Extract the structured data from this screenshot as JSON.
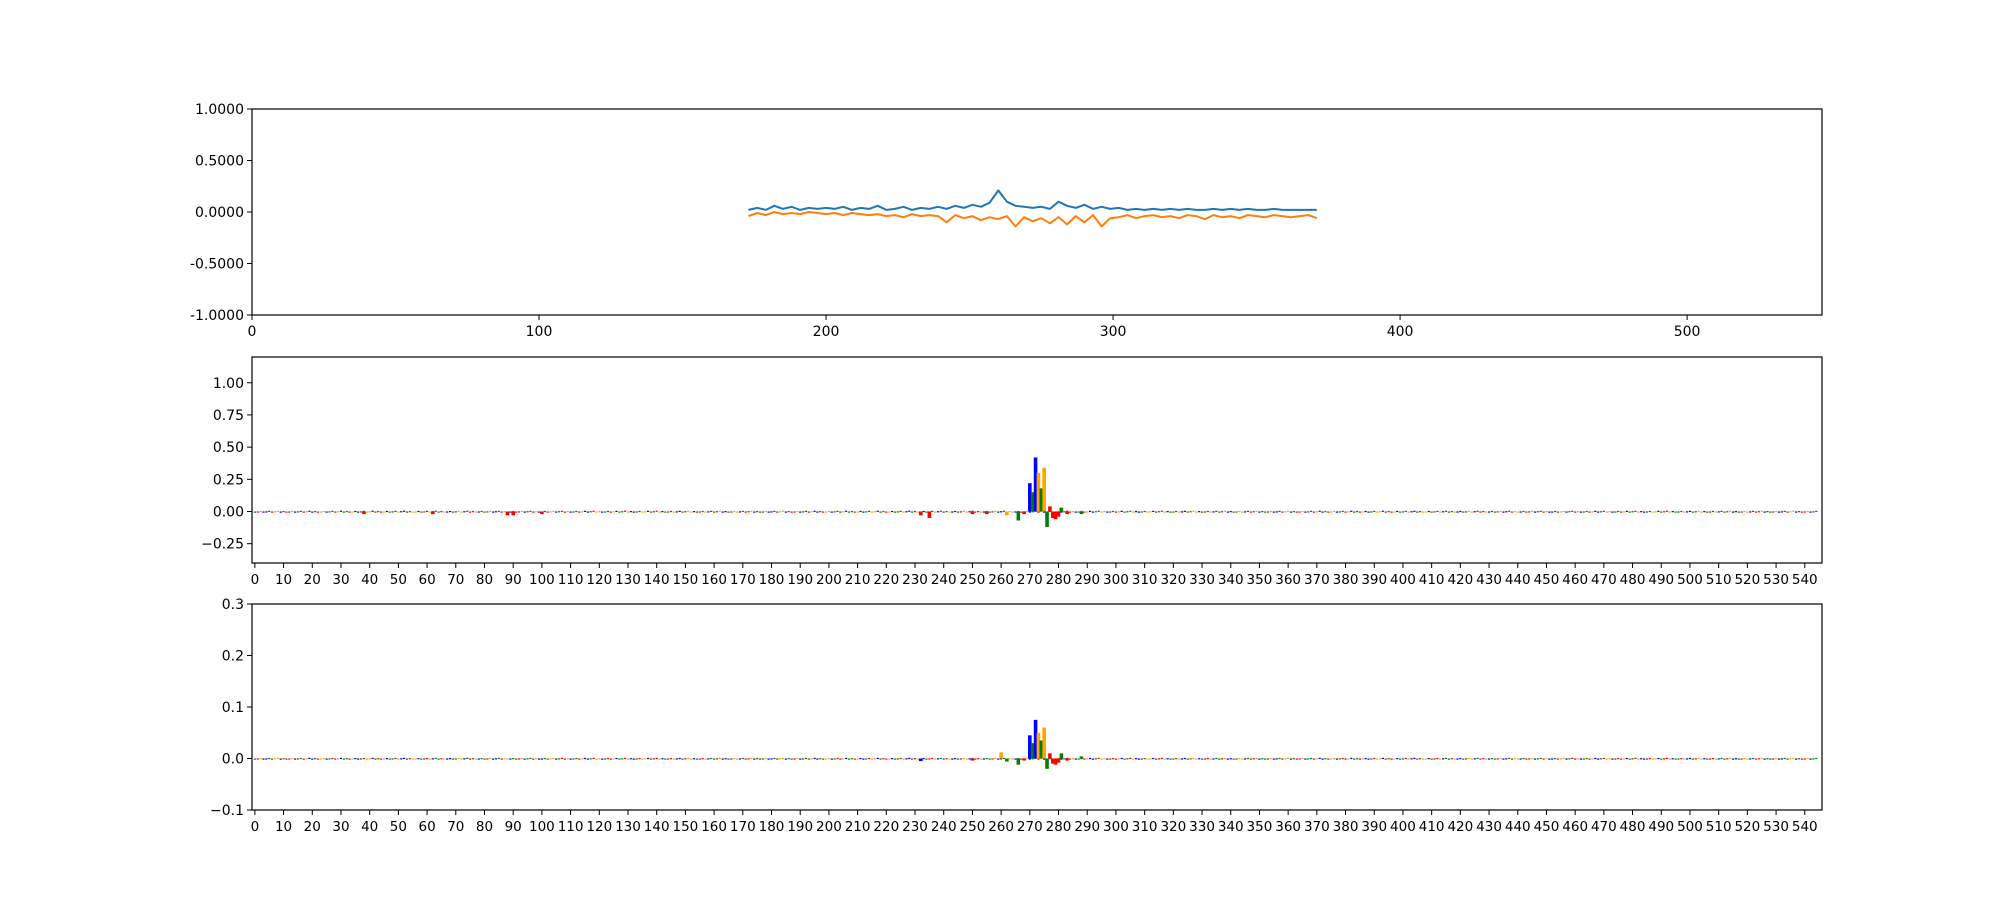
{
  "colors": {
    "series_blue": "#1f77b4",
    "series_orange": "#ff7f0e",
    "base_A": "#008000",
    "base_C": "#0000ff",
    "base_G": "#ffa500",
    "base_T": "#ff0000",
    "axis": "#000000"
  },
  "chart_data": [
    {
      "type": "line",
      "xlim": [
        0,
        547
      ],
      "ylim": [
        -1.0,
        1.0
      ],
      "xticks": [
        0,
        100,
        200,
        300,
        400,
        500
      ],
      "xtick_labels": [
        "0",
        "100",
        "200",
        "300",
        "400",
        "500"
      ],
      "yticks": [
        1.0,
        0.5,
        0.0,
        -0.5,
        -1.0
      ],
      "ytick_labels": [
        "1.0000",
        "0.5000",
        "0.0000",
        "-0.5000",
        "-1.0000"
      ],
      "grid": false,
      "series": [
        {
          "color": "series_blue",
          "x": [
            173,
            176,
            179,
            182,
            185,
            188,
            191,
            194,
            197,
            200,
            203,
            206,
            209,
            212,
            215,
            218,
            221,
            224,
            227,
            230,
            233,
            236,
            239,
            242,
            245,
            248,
            251,
            254,
            257,
            260,
            263,
            266,
            269,
            272,
            275,
            278,
            281,
            284,
            287,
            290,
            293,
            296,
            299,
            302,
            305,
            308,
            311,
            314,
            317,
            320,
            323,
            326,
            329,
            332,
            335,
            338,
            341,
            344,
            347,
            350,
            353,
            356,
            359,
            362,
            365,
            368,
            371
          ],
          "y": [
            0.02,
            0.04,
            0.02,
            0.06,
            0.03,
            0.05,
            0.02,
            0.04,
            0.03,
            0.04,
            0.03,
            0.05,
            0.02,
            0.04,
            0.03,
            0.06,
            0.02,
            0.03,
            0.05,
            0.02,
            0.04,
            0.03,
            0.05,
            0.03,
            0.06,
            0.04,
            0.07,
            0.05,
            0.09,
            0.21,
            0.1,
            0.06,
            0.05,
            0.04,
            0.05,
            0.03,
            0.1,
            0.06,
            0.04,
            0.07,
            0.03,
            0.05,
            0.03,
            0.04,
            0.02,
            0.03,
            0.02,
            0.03,
            0.02,
            0.03,
            0.02,
            0.03,
            0.02,
            0.02,
            0.03,
            0.02,
            0.03,
            0.02,
            0.03,
            0.02,
            0.02,
            0.03,
            0.02,
            0.02,
            0.02,
            0.02,
            0.02
          ]
        },
        {
          "color": "series_orange",
          "x": [
            173,
            176,
            179,
            182,
            185,
            188,
            191,
            194,
            197,
            200,
            203,
            206,
            209,
            212,
            215,
            218,
            221,
            224,
            227,
            230,
            233,
            236,
            239,
            242,
            245,
            248,
            251,
            254,
            257,
            260,
            263,
            266,
            269,
            272,
            275,
            278,
            281,
            284,
            287,
            290,
            293,
            296,
            299,
            302,
            305,
            308,
            311,
            314,
            317,
            320,
            323,
            326,
            329,
            332,
            335,
            338,
            341,
            344,
            347,
            350,
            353,
            356,
            359,
            362,
            365,
            368,
            371
          ],
          "y": [
            -0.04,
            -0.01,
            -0.03,
            0.0,
            -0.02,
            -0.01,
            -0.02,
            0.0,
            -0.01,
            -0.02,
            -0.01,
            -0.03,
            -0.01,
            -0.02,
            -0.03,
            -0.02,
            -0.04,
            -0.03,
            -0.05,
            -0.02,
            -0.04,
            -0.03,
            -0.04,
            -0.1,
            -0.03,
            -0.06,
            -0.04,
            -0.08,
            -0.05,
            -0.07,
            -0.04,
            -0.14,
            -0.05,
            -0.09,
            -0.06,
            -0.11,
            -0.05,
            -0.12,
            -0.04,
            -0.1,
            -0.03,
            -0.14,
            -0.06,
            -0.05,
            -0.03,
            -0.06,
            -0.04,
            -0.03,
            -0.05,
            -0.04,
            -0.06,
            -0.03,
            -0.04,
            -0.07,
            -0.03,
            -0.05,
            -0.04,
            -0.06,
            -0.03,
            -0.04,
            -0.05,
            -0.03,
            -0.04,
            -0.05,
            -0.04,
            -0.03,
            -0.06
          ]
        }
      ]
    },
    {
      "type": "bar",
      "xlim": [
        -1,
        546
      ],
      "ylim": [
        -0.4,
        1.2
      ],
      "xticks": [
        0,
        10,
        20,
        30,
        40,
        50,
        60,
        70,
        80,
        90,
        100,
        110,
        120,
        130,
        140,
        150,
        160,
        170,
        180,
        190,
        200,
        210,
        220,
        230,
        240,
        250,
        260,
        270,
        280,
        290,
        300,
        310,
        320,
        330,
        340,
        350,
        360,
        370,
        380,
        390,
        400,
        410,
        420,
        430,
        440,
        450,
        460,
        470,
        480,
        490,
        500,
        510,
        520,
        530,
        540
      ],
      "xtick_labels": [
        "0",
        "10",
        "20",
        "30",
        "40",
        "50",
        "60",
        "70",
        "80",
        "90",
        "100",
        "110",
        "120",
        "130",
        "140",
        "150",
        "160",
        "170",
        "180",
        "190",
        "200",
        "210",
        "220",
        "230",
        "240",
        "250",
        "260",
        "270",
        "280",
        "290",
        "300",
        "310",
        "320",
        "330",
        "340",
        "350",
        "360",
        "370",
        "380",
        "390",
        "400",
        "410",
        "420",
        "430",
        "440",
        "450",
        "460",
        "470",
        "480",
        "490",
        "500",
        "510",
        "520",
        "530",
        "540"
      ],
      "yticks": [
        -0.25,
        0.0,
        0.25,
        0.5,
        0.75,
        1.0
      ],
      "ytick_labels": [
        "−0.25",
        "0.00",
        "0.25",
        "0.50",
        "0.75",
        "1.00"
      ],
      "grid": false,
      "baseline_noise": 0.01,
      "positions": [
        38,
        62,
        88,
        90,
        100,
        232,
        235,
        250,
        255,
        262,
        266,
        268,
        270,
        271,
        272,
        273,
        274,
        275,
        276,
        277,
        278,
        279,
        280,
        281,
        283,
        288
      ],
      "bases": [
        "T",
        "T",
        "T",
        "T",
        "T",
        "T",
        "T",
        "T",
        "T",
        "G",
        "A",
        "T",
        "C",
        "A",
        "C",
        "G",
        "A",
        "G",
        "A",
        "T",
        "T",
        "T",
        "T",
        "A",
        "T",
        "A"
      ],
      "values": [
        -0.02,
        -0.02,
        -0.03,
        -0.03,
        -0.02,
        -0.03,
        -0.05,
        -0.02,
        -0.02,
        -0.03,
        -0.07,
        -0.02,
        0.22,
        0.15,
        0.42,
        0.3,
        0.18,
        0.34,
        -0.12,
        0.04,
        -0.05,
        -0.06,
        -0.04,
        0.03,
        -0.02,
        -0.02
      ]
    },
    {
      "type": "bar",
      "xlim": [
        -1,
        546
      ],
      "ylim": [
        -0.1,
        0.3
      ],
      "xticks": [
        0,
        10,
        20,
        30,
        40,
        50,
        60,
        70,
        80,
        90,
        100,
        110,
        120,
        130,
        140,
        150,
        160,
        170,
        180,
        190,
        200,
        210,
        220,
        230,
        240,
        250,
        260,
        270,
        280,
        290,
        300,
        310,
        320,
        330,
        340,
        350,
        360,
        370,
        380,
        390,
        400,
        410,
        420,
        430,
        440,
        450,
        460,
        470,
        480,
        490,
        500,
        510,
        520,
        530,
        540
      ],
      "xtick_labels": [
        "0",
        "10",
        "20",
        "30",
        "40",
        "50",
        "60",
        "70",
        "80",
        "90",
        "100",
        "110",
        "120",
        "130",
        "140",
        "150",
        "160",
        "170",
        "180",
        "190",
        "200",
        "210",
        "220",
        "230",
        "240",
        "250",
        "260",
        "270",
        "280",
        "290",
        "300",
        "310",
        "320",
        "330",
        "340",
        "350",
        "360",
        "370",
        "380",
        "390",
        "400",
        "410",
        "420",
        "430",
        "440",
        "450",
        "460",
        "470",
        "480",
        "490",
        "500",
        "510",
        "520",
        "530",
        "540"
      ],
      "yticks": [
        -0.1,
        0.0,
        0.1,
        0.2,
        0.3
      ],
      "ytick_labels": [
        "−0.1",
        "0.0",
        "0.1",
        "0.2",
        "0.3"
      ],
      "grid": false,
      "baseline_noise": 0.002,
      "positions": [
        232,
        250,
        260,
        262,
        266,
        268,
        270,
        271,
        272,
        273,
        274,
        275,
        276,
        277,
        278,
        279,
        280,
        281,
        283,
        288
      ],
      "bases": [
        "C",
        "T",
        "G",
        "A",
        "A",
        "T",
        "C",
        "A",
        "C",
        "G",
        "A",
        "G",
        "A",
        "T",
        "T",
        "T",
        "T",
        "A",
        "T",
        "A"
      ],
      "values": [
        -0.005,
        -0.004,
        0.012,
        -0.006,
        -0.012,
        -0.004,
        0.045,
        0.03,
        0.075,
        0.05,
        0.035,
        0.06,
        -0.02,
        0.01,
        -0.01,
        -0.012,
        -0.008,
        0.01,
        -0.004,
        0.004
      ]
    }
  ]
}
